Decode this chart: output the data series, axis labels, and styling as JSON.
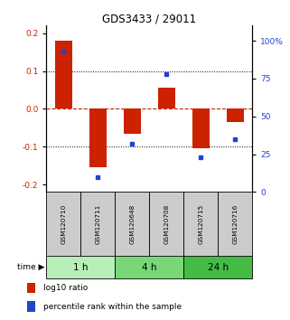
{
  "title": "GDS3433 / 29011",
  "samples": [
    "GSM120710",
    "GSM120711",
    "GSM120648",
    "GSM120708",
    "GSM120715",
    "GSM120716"
  ],
  "log10_ratio": [
    0.18,
    -0.155,
    -0.065,
    0.055,
    -0.105,
    -0.035
  ],
  "percentile_rank": [
    93,
    10,
    32,
    78,
    23,
    35
  ],
  "groups": [
    {
      "label": "1 h",
      "indices": [
        0,
        1
      ],
      "color": "#b8eeb8"
    },
    {
      "label": "4 h",
      "indices": [
        2,
        3
      ],
      "color": "#78d878"
    },
    {
      "label": "24 h",
      "indices": [
        4,
        5
      ],
      "color": "#44bb44"
    }
  ],
  "ylim_left": [
    -0.22,
    0.22
  ],
  "ylim_right": [
    0,
    110
  ],
  "yticks_left": [
    -0.2,
    -0.1,
    0,
    0.1,
    0.2
  ],
  "yticks_right": [
    0,
    25,
    50,
    75,
    100
  ],
  "bar_color_red": "#cc2200",
  "dot_color_blue": "#2244cc",
  "zero_line_color": "#cc2200",
  "sample_box_color": "#cccccc",
  "bar_width": 0.5,
  "figsize": [
    3.21,
    3.54
  ],
  "dpi": 100
}
